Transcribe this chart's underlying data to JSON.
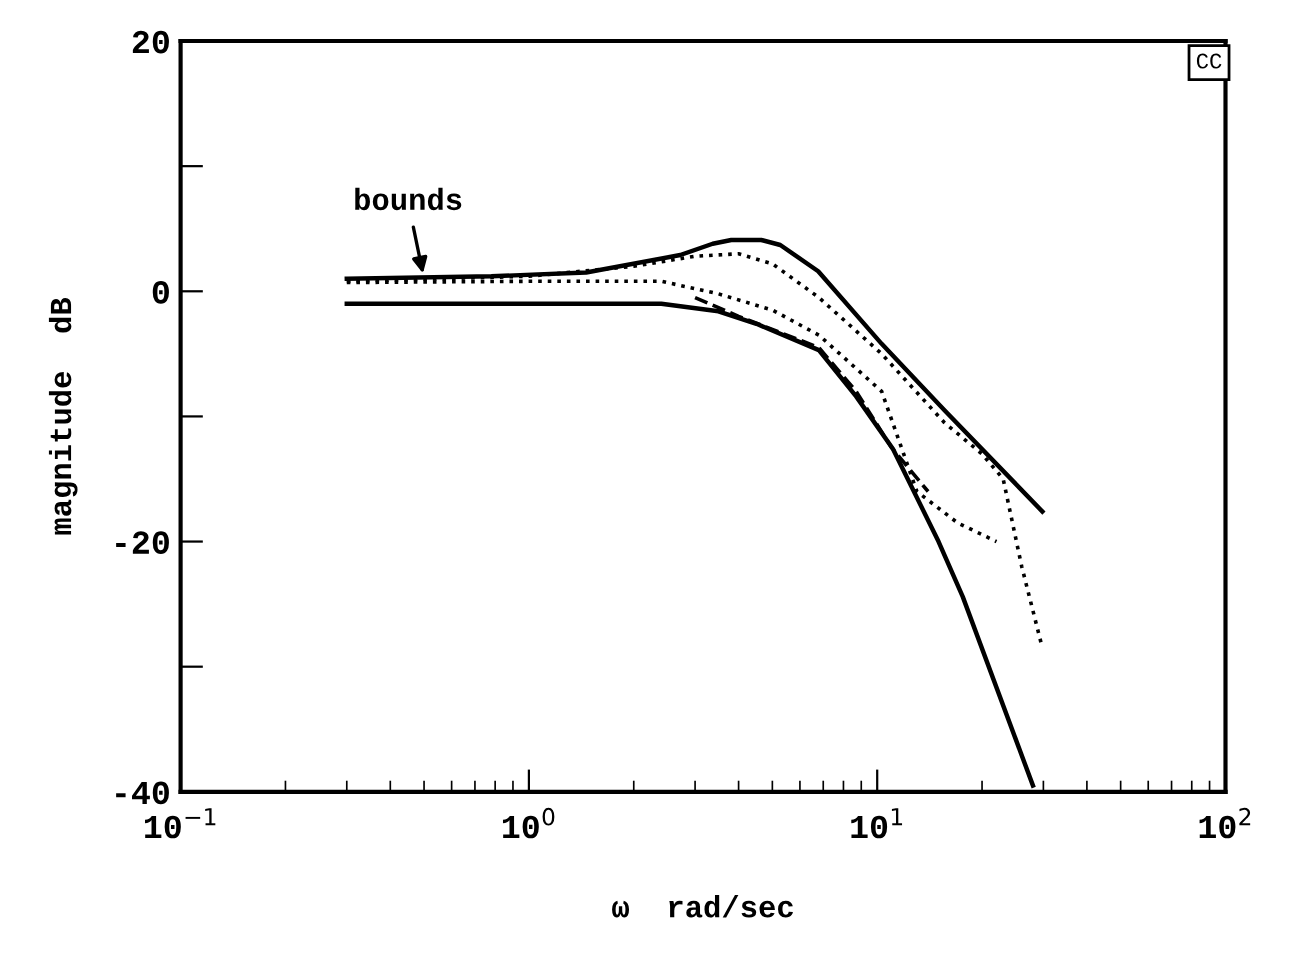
{
  "chart_data": {
    "type": "line",
    "xlabel": "ω  rad/sec",
    "ylabel": "magnitude  dB",
    "log": "x",
    "xlim": [
      0.1,
      100
    ],
    "ylim": [
      -40,
      20
    ],
    "xticks": [
      {
        "value": 0.1,
        "label": "10$^{−1}$"
      },
      {
        "value": 1,
        "label": "10$^{0}$"
      },
      {
        "value": 10,
        "label": "10$^{1}$"
      },
      {
        "value": 100,
        "label": "10$^{2}$"
      }
    ],
    "yticks": [
      -40,
      {
        "value": -30,
        "label": null
      },
      -20,
      {
        "value": -10,
        "label": null
      },
      0,
      {
        "value": 10,
        "label": null
      },
      20
    ],
    "grid": false,
    "legend": false,
    "marker": "none",
    "series": [
      {
        "color": "#000000",
        "line_style": "solid",
        "x": [
          0.3,
          0.78,
          1.46,
          2.72,
          3.37,
          3.81,
          4.65,
          5.27,
          6.77,
          10.3,
          15.6,
          29.8
        ],
        "values": [
          1,
          1.2,
          1.5,
          2.9,
          3.8,
          4.1,
          4.1,
          3.7,
          1.6,
          -4.2,
          -9.5,
          -17.6
        ]
      },
      {
        "color": "#000000",
        "line_style": "solid",
        "x": [
          0.3,
          2.4,
          3.5,
          4.5,
          6.8,
          8.7,
          11.1,
          15.0,
          17.6,
          28
        ],
        "values": [
          -1,
          -1,
          -1.6,
          -2.6,
          -4.7,
          -8.4,
          -12.6,
          -20,
          -24.4,
          -39.5
        ]
      },
      {
        "color": "#000000",
        "line_style": "dotted",
        "x": [
          0.3,
          1,
          2,
          3,
          4,
          5,
          6.8,
          10.3,
          15.6,
          20,
          23,
          26,
          29.8
        ],
        "values": [
          0.8,
          1.2,
          2,
          2.8,
          3,
          2.2,
          -0.5,
          -5,
          -10.5,
          -13,
          -15,
          -22,
          -28.5
        ]
      },
      {
        "color": "#000000",
        "line_style": "dotted",
        "x": [
          0.3,
          1,
          2.4,
          3.5,
          5,
          6.8,
          10.3,
          13,
          17,
          22
        ],
        "values": [
          0.7,
          0.8,
          0.8,
          -0.2,
          -1.5,
          -3.5,
          -8,
          -16,
          -18.5,
          -20
        ]
      },
      {
        "color": "#000000",
        "line_style": "dashed",
        "x": [
          3,
          4,
          6.8,
          8.7,
          11,
          14
        ],
        "values": [
          -0.5,
          -2,
          -4.5,
          -8,
          -12.5,
          -16
        ]
      }
    ],
    "annotations": [
      {
        "text": "bounds",
        "x": 0.5,
        "y": 1
      },
      "CC"
    ]
  }
}
